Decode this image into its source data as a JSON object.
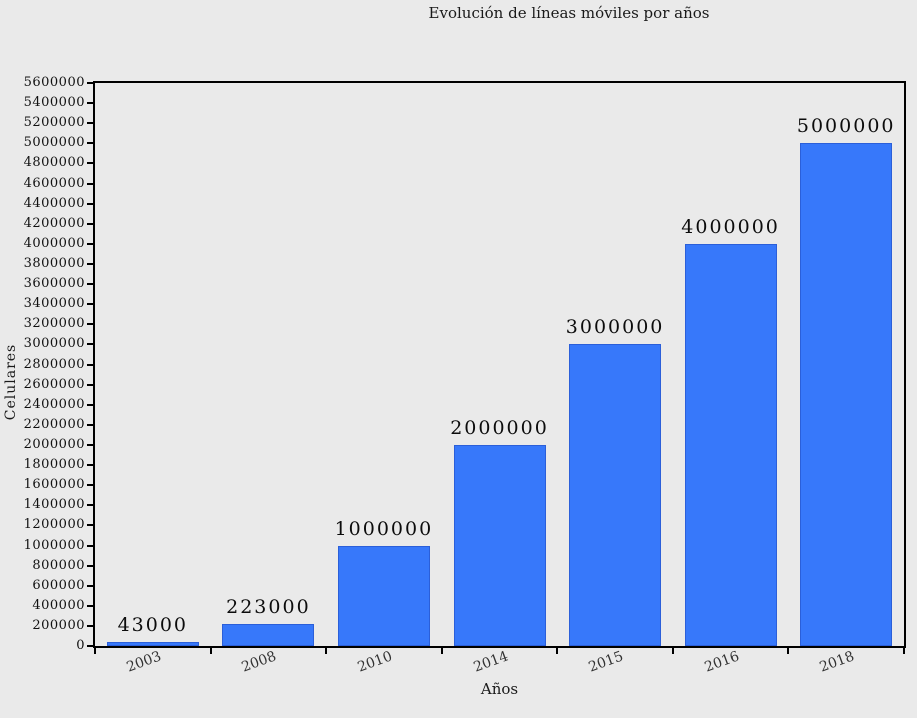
{
  "page": {
    "background_color": "#eaeaea"
  },
  "chart_data": {
    "type": "bar",
    "title": "Evolución de líneas móviles por años",
    "xlabel": "Años",
    "ylabel": "Celulares",
    "categories": [
      "2003",
      "2008",
      "2010",
      "2014",
      "2015",
      "2016",
      "2018"
    ],
    "values": [
      43000,
      223000,
      1000000,
      2000000,
      3000000,
      4000000,
      5000000
    ],
    "bar_labels": [
      "43000",
      "223000",
      "1000000",
      "2000000",
      "3000000",
      "4000000",
      "5000000"
    ],
    "ylim": [
      0,
      5600000
    ],
    "ytick_step": 200000,
    "ytick_labels": [
      "0",
      "200000",
      "400000",
      "600000",
      "800000",
      "1000000",
      "1200000",
      "1400000",
      "1600000",
      "1800000",
      "2000000",
      "2200000",
      "2400000",
      "2600000",
      "2800000",
      "3000000",
      "3200000",
      "3400000",
      "3600000",
      "3800000",
      "4000000",
      "4200000",
      "4400000",
      "4600000",
      "4800000",
      "5000000",
      "5200000",
      "5400000",
      "5600000"
    ],
    "grid": false,
    "legend_position": "none",
    "bar_color": "#3778fa",
    "bar_edge_color": "#2b5fd9",
    "axis_color": "#000000",
    "background_color": "#eaeaea"
  }
}
